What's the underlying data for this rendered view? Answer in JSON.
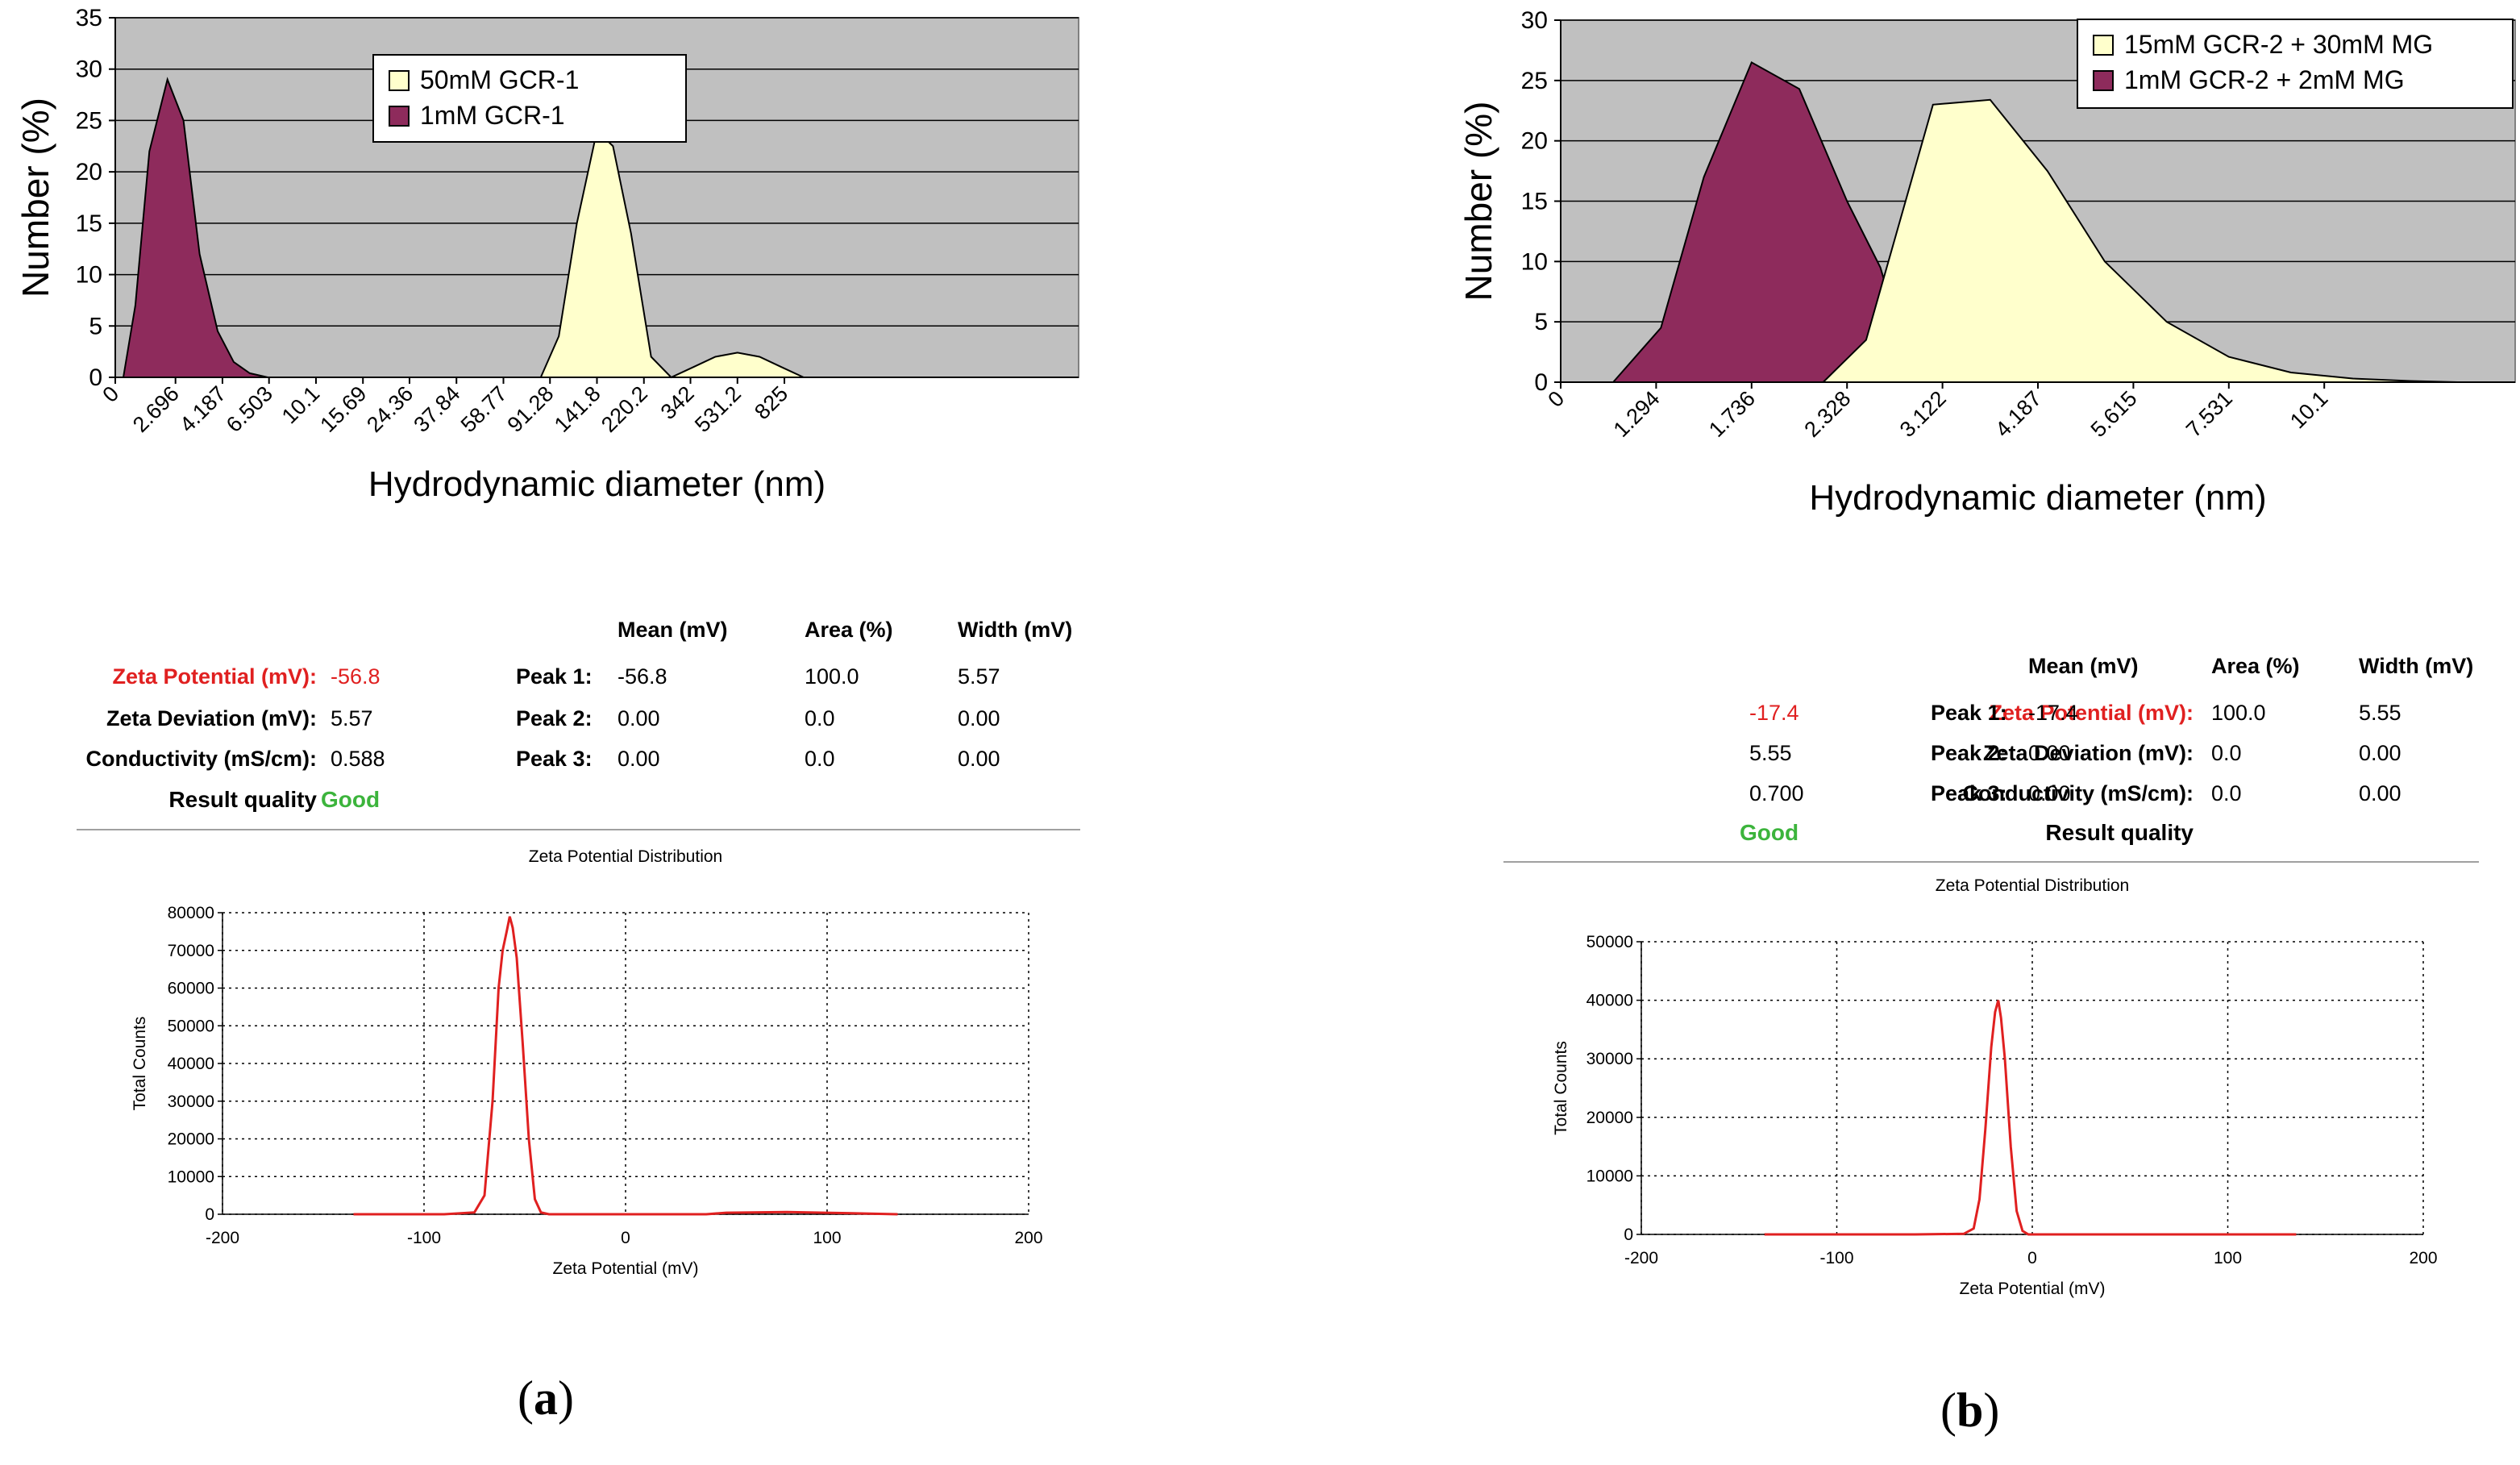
{
  "panels": [
    {
      "id": "a",
      "caption_open": "(",
      "caption_letter": "a",
      "caption_close": ")",
      "zeta": {
        "labels": {
          "zeta_potential": "Zeta Potential (mV):",
          "zeta_deviation": "Zeta Deviation (mV):",
          "conductivity": "Conductivity (mS/cm):",
          "result_quality": "Result quality"
        },
        "zeta_potential": "-56.8",
        "zeta_deviation": "5.57",
        "conductivity": "0.588",
        "result_quality": "Good",
        "headers": [
          "Mean (mV)",
          "Area (%)",
          "Width (mV)"
        ],
        "peaks": [
          {
            "label": "Peak 1:",
            "mean": "-56.8",
            "area": "100.0",
            "width": "5.57"
          },
          {
            "label": "Peak 2:",
            "mean": "0.00",
            "area": "0.0",
            "width": "0.00"
          },
          {
            "label": "Peak 3:",
            "mean": "0.00",
            "area": "0.0",
            "width": "0.00"
          }
        ]
      }
    },
    {
      "id": "b",
      "caption_open": "(",
      "caption_letter": "b",
      "caption_close": ")",
      "zeta": {
        "labels": {
          "zeta_potential": "Zeta Potential (mV):",
          "zeta_deviation": "Zeta Deviation (mV):",
          "conductivity": "Conductivity (mS/cm):",
          "result_quality": "Result quality"
        },
        "zeta_potential": "-17.4",
        "zeta_deviation": "5.55",
        "conductivity": "0.700",
        "result_quality": "Good",
        "headers": [
          "Mean (mV)",
          "Area (%)",
          "Width (mV)"
        ],
        "peaks": [
          {
            "label": "Peak 1:",
            "mean": "-17.4",
            "area": "100.0",
            "width": "5.55"
          },
          {
            "label": "Peak 2:",
            "mean": "0.00",
            "area": "0.0",
            "width": "0.00"
          },
          {
            "label": "Peak 3:",
            "mean": "0.00",
            "area": "0.0",
            "width": "0.00"
          }
        ]
      }
    }
  ],
  "chart_data": [
    {
      "type": "area",
      "panel": "a",
      "xlabel": "Hydrodynamic diameter (nm)",
      "ylabel": "Number (%)",
      "ylim": [
        0,
        35
      ],
      "yticks": [
        0,
        5,
        10,
        15,
        20,
        25,
        30,
        35
      ],
      "xmax": 24,
      "grid": true,
      "xtick_labels": [
        {
          "x": 0,
          "label": "0"
        },
        {
          "x": 1.5,
          "label": "2.696"
        },
        {
          "x": 2.67,
          "label": "4.187"
        },
        {
          "x": 3.83,
          "label": "6.503"
        },
        {
          "x": 5,
          "label": "10.1"
        },
        {
          "x": 6.17,
          "label": "15.69"
        },
        {
          "x": 7.33,
          "label": "24.36"
        },
        {
          "x": 8.5,
          "label": "37.84"
        },
        {
          "x": 9.67,
          "label": "58.77"
        },
        {
          "x": 10.83,
          "label": "91.28"
        },
        {
          "x": 12,
          "label": "141.8"
        },
        {
          "x": 13.17,
          "label": "220.2"
        },
        {
          "x": 14.33,
          "label": "342"
        },
        {
          "x": 15.5,
          "label": "531.2"
        },
        {
          "x": 16.67,
          "label": "825"
        }
      ],
      "legend": {
        "position": "top-center",
        "entries": [
          "50mM GCR-1",
          "1mM GCR-1"
        ]
      },
      "series": [
        {
          "name": "50mM GCR-1",
          "color": "#ffffcc",
          "points": [
            [
              10.6,
              0
            ],
            [
              11.05,
              4
            ],
            [
              11.5,
              15
            ],
            [
              12.0,
              24
            ],
            [
              12.4,
              22.5
            ],
            [
              12.85,
              14
            ],
            [
              13.35,
              2
            ],
            [
              13.85,
              0
            ],
            [
              14.4,
              1
            ],
            [
              14.95,
              2
            ],
            [
              15.5,
              2.4
            ],
            [
              16.05,
              2
            ],
            [
              16.6,
              1
            ],
            [
              17.15,
              0
            ]
          ]
        },
        {
          "name": "1mM GCR-1",
          "color": "#8e2b5c",
          "points": [
            [
              0.2,
              0
            ],
            [
              0.5,
              7
            ],
            [
              0.85,
              22
            ],
            [
              1.3,
              29
            ],
            [
              1.7,
              25
            ],
            [
              2.1,
              12
            ],
            [
              2.55,
              4.5
            ],
            [
              2.95,
              1.5
            ],
            [
              3.35,
              0.4
            ],
            [
              3.8,
              0
            ]
          ]
        }
      ]
    },
    {
      "type": "area",
      "panel": "b",
      "xlabel": "Hydrodynamic diameter (nm)",
      "ylabel": "Number (%)",
      "ylim": [
        0,
        30
      ],
      "yticks": [
        0,
        5,
        10,
        15,
        20,
        25,
        30
      ],
      "xmax": 10,
      "grid": true,
      "xtick_labels": [
        {
          "x": 0,
          "label": "0"
        },
        {
          "x": 1,
          "label": "1.294"
        },
        {
          "x": 2,
          "label": "1.736"
        },
        {
          "x": 3,
          "label": "2.328"
        },
        {
          "x": 4,
          "label": "3.122"
        },
        {
          "x": 5,
          "label": "4.187"
        },
        {
          "x": 6,
          "label": "5.615"
        },
        {
          "x": 7,
          "label": "7.531"
        },
        {
          "x": 8,
          "label": "10.1"
        }
      ],
      "legend": {
        "position": "top-right",
        "entries": [
          "15mM GCR-2 + 30mM MG",
          "1mM GCR-2 + 2mM MG"
        ]
      },
      "series": [
        {
          "name": "1mM GCR-2 + 2mM MG",
          "color": "#8e2b5c",
          "points": [
            [
              0.55,
              0
            ],
            [
              1.05,
              4.5
            ],
            [
              1.5,
              17
            ],
            [
              2.0,
              26.5
            ],
            [
              2.5,
              24.3
            ],
            [
              3.0,
              15
            ],
            [
              3.35,
              9.5
            ],
            [
              3.7,
              0
            ]
          ]
        },
        {
          "name": "15mM GCR-2 + 30mM MG",
          "color": "#ffffcc",
          "points": [
            [
              2.75,
              0
            ],
            [
              3.2,
              3.5
            ],
            [
              3.9,
              23
            ],
            [
              4.5,
              23.4
            ],
            [
              5.1,
              17.5
            ],
            [
              5.7,
              10
            ],
            [
              6.35,
              5
            ],
            [
              7.0,
              2.1
            ],
            [
              7.65,
              0.8
            ],
            [
              8.3,
              0.3
            ],
            [
              8.9,
              0.1
            ],
            [
              9.4,
              0
            ]
          ]
        }
      ]
    },
    {
      "type": "line",
      "panel": "a",
      "title": "Zeta Potential Distribution",
      "xlabel": "Zeta Potential (mV)",
      "ylabel": "Total Counts",
      "xlim": [
        -200,
        200
      ],
      "ylim": [
        0,
        80000
      ],
      "xticks": [
        -200,
        -100,
        0,
        100,
        200
      ],
      "yticks": [
        0,
        10000,
        20000,
        30000,
        40000,
        50000,
        60000,
        70000,
        80000
      ],
      "grid": true,
      "color": "#e02020",
      "series": [
        {
          "name": "Total Counts",
          "points": [
            [
              -135,
              0
            ],
            [
              -90,
              0
            ],
            [
              -75,
              500
            ],
            [
              -70,
              5000
            ],
            [
              -66,
              30000
            ],
            [
              -63,
              60000
            ],
            [
              -61,
              70000
            ],
            [
              -59,
              75000
            ],
            [
              -57.5,
              79000
            ],
            [
              -56,
              76000
            ],
            [
              -54,
              68000
            ],
            [
              -51,
              45000
            ],
            [
              -48,
              20000
            ],
            [
              -45,
              4000
            ],
            [
              -42,
              500
            ],
            [
              -38,
              0
            ],
            [
              0,
              0
            ],
            [
              40,
              0
            ],
            [
              50,
              400
            ],
            [
              80,
              600
            ],
            [
              110,
              300
            ],
            [
              135,
              0
            ]
          ]
        }
      ]
    },
    {
      "type": "line",
      "panel": "b",
      "title": "Zeta Potential Distribution",
      "xlabel": "Zeta Potential (mV)",
      "ylabel": "Total Counts",
      "xlim": [
        -200,
        200
      ],
      "ylim": [
        0,
        50000
      ],
      "xticks": [
        -200,
        -100,
        0,
        100,
        200
      ],
      "yticks": [
        0,
        10000,
        20000,
        30000,
        40000,
        50000
      ],
      "grid": true,
      "color": "#e02020",
      "series": [
        {
          "name": "Total Counts",
          "points": [
            [
              -137,
              0
            ],
            [
              -60,
              0
            ],
            [
              -35,
              100
            ],
            [
              -30,
              1000
            ],
            [
              -27,
              6000
            ],
            [
              -24,
              18000
            ],
            [
              -21,
              32000
            ],
            [
              -19,
              38000
            ],
            [
              -17.4,
              40000
            ],
            [
              -16,
              37000
            ],
            [
              -14,
              30000
            ],
            [
              -11,
              15000
            ],
            [
              -8,
              4000
            ],
            [
              -5,
              600
            ],
            [
              -2,
              0
            ],
            [
              135,
              0
            ]
          ]
        }
      ]
    }
  ]
}
